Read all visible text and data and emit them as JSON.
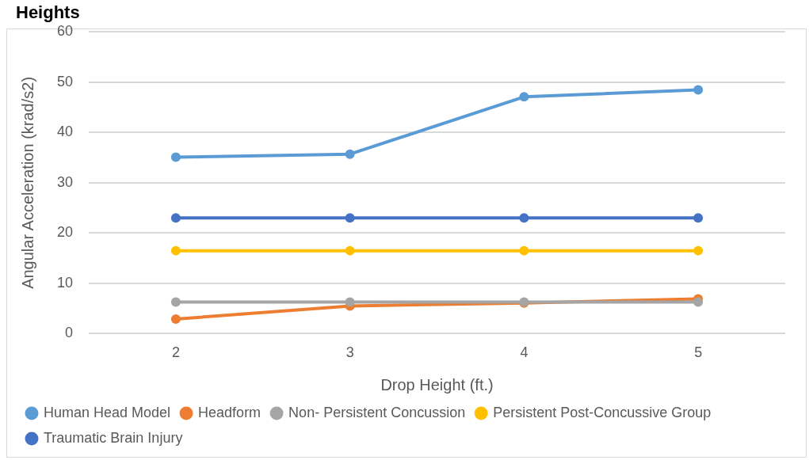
{
  "chart_data": {
    "type": "line",
    "title": "Heights",
    "xlabel": "Drop Height (ft.)",
    "ylabel": "Angular Acceleration (krad/s2)",
    "categories": [
      "2",
      "3",
      "4",
      "5"
    ],
    "series": [
      {
        "name": "Human Head Model",
        "color": "#5b9bd5",
        "values": [
          35.1,
          35.7,
          47.1,
          48.5
        ]
      },
      {
        "name": "Headform",
        "color": "#ed7d31",
        "values": [
          2.9,
          5.5,
          6.1,
          6.9
        ]
      },
      {
        "name": "Non- Persistent Concussion",
        "color": "#a5a5a5",
        "values": [
          6.3,
          6.3,
          6.3,
          6.3
        ]
      },
      {
        "name": "Persistent Post-Concussive Group",
        "color": "#ffc000",
        "values": [
          16.5,
          16.5,
          16.5,
          16.5
        ]
      },
      {
        "name": "Traumatic Brain Injury",
        "color": "#4472c4",
        "values": [
          23,
          23,
          23,
          23
        ]
      }
    ],
    "ylim": [
      0,
      60
    ],
    "yticks": [
      0,
      10,
      20,
      30,
      40,
      50,
      60
    ],
    "grid": "y",
    "legend": "bottom",
    "marker": "circle",
    "line_style": "solid"
  }
}
